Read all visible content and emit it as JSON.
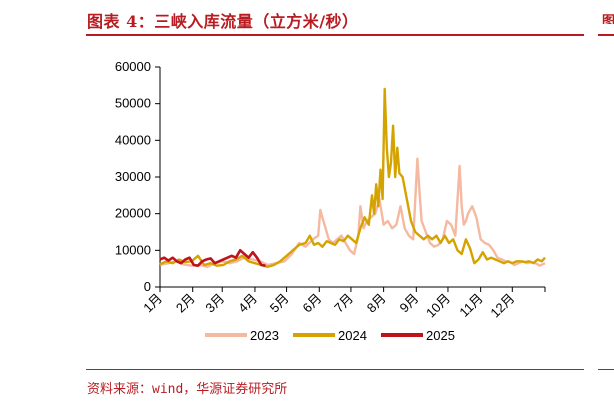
{
  "header": {
    "title": "图表 4：三峡入库流量（立方米/秒）",
    "side_mark": "图"
  },
  "footer": {
    "source": "资料来源：wind，华源证券研究所"
  },
  "chart_data": {
    "type": "line",
    "title": "图表 4：三峡入库流量（立方米/秒）",
    "xlabel": "",
    "ylabel": "",
    "ylim": [
      0,
      60000
    ],
    "yticks": [
      0,
      10000,
      20000,
      30000,
      40000,
      50000,
      60000
    ],
    "ytick_labels": [
      "0",
      "10000",
      "20000",
      "30000",
      "40000",
      "50000",
      "60000"
    ],
    "xlim": [
      0,
      365
    ],
    "xticks": [
      0,
      31,
      59,
      90,
      120,
      151,
      181,
      212,
      243,
      273,
      304,
      334,
      365
    ],
    "xtick_labels": [
      "1月",
      "2月",
      "3月",
      "4月",
      "5月",
      "6月",
      "7月",
      "8月",
      "9月",
      "10月",
      "11月",
      "12月"
    ],
    "grid": false,
    "legend_position": "bottom",
    "series": [
      {
        "name": "2023",
        "color": "#f4b9a0",
        "x": [
          0,
          8,
          15,
          22,
          30,
          38,
          45,
          52,
          59,
          66,
          73,
          80,
          88,
          95,
          102,
          110,
          118,
          125,
          132,
          138,
          145,
          150,
          152,
          156,
          160,
          164,
          168,
          172,
          176,
          180,
          184,
          188,
          190,
          193,
          196,
          200,
          204,
          208,
          212,
          216,
          220,
          224,
          228,
          232,
          236,
          240,
          242,
          244,
          246,
          248,
          252,
          256,
          260,
          264,
          268,
          272,
          276,
          280,
          284,
          286,
          288,
          290,
          292,
          296,
          300,
          304,
          308,
          312,
          316,
          320,
          324,
          328,
          332,
          336,
          340,
          344,
          348,
          352,
          356,
          360,
          365
        ],
        "y": [
          6000,
          6500,
          7000,
          6200,
          5800,
          6000,
          5500,
          6500,
          7000,
          6500,
          7000,
          8000,
          7500,
          7000,
          6000,
          6500,
          7000,
          9000,
          12000,
          11000,
          13000,
          14000,
          21000,
          17000,
          13000,
          12000,
          13000,
          14000,
          12000,
          10000,
          9000,
          14000,
          22000,
          16000,
          18000,
          19000,
          20000,
          24000,
          17000,
          18000,
          16000,
          17000,
          22000,
          16000,
          14000,
          13000,
          24000,
          35000,
          26000,
          18000,
          15000,
          12000,
          11000,
          11500,
          13000,
          18000,
          17000,
          14000,
          33000,
          22000,
          17000,
          18000,
          20000,
          22000,
          19000,
          13000,
          12000,
          11500,
          10000,
          8000,
          7500,
          7000,
          6800,
          6000,
          6500,
          7000,
          6500,
          6800,
          6500,
          5800,
          6500
        ]
      },
      {
        "name": "2024",
        "color": "#d4a300",
        "x": [
          0,
          6,
          12,
          18,
          24,
          30,
          36,
          42,
          48,
          54,
          60,
          66,
          72,
          78,
          84,
          90,
          96,
          102,
          108,
          114,
          120,
          126,
          132,
          138,
          142,
          146,
          150,
          154,
          158,
          162,
          166,
          170,
          174,
          178,
          182,
          186,
          190,
          194,
          198,
          201,
          203,
          205,
          207,
          209,
          211,
          213,
          215,
          217,
          219,
          221,
          223,
          225,
          227,
          230,
          234,
          238,
          242,
          246,
          250,
          254,
          258,
          262,
          266,
          270,
          274,
          278,
          282,
          286,
          290,
          294,
          298,
          302,
          306,
          310,
          314,
          318,
          322,
          326,
          330,
          334,
          338,
          342,
          346,
          350,
          354,
          358,
          362,
          365
        ],
        "y": [
          6200,
          7000,
          6500,
          7500,
          6800,
          7000,
          8500,
          6000,
          6500,
          5800,
          6000,
          7000,
          7500,
          8500,
          7000,
          6500,
          6000,
          5500,
          6000,
          7000,
          8500,
          10000,
          11500,
          12000,
          14000,
          11500,
          12000,
          11000,
          12500,
          12000,
          11500,
          13000,
          12500,
          14000,
          13000,
          12000,
          16000,
          19000,
          17000,
          25000,
          20000,
          28000,
          22000,
          32000,
          24000,
          54000,
          38000,
          30000,
          34000,
          44000,
          30000,
          38000,
          31000,
          30000,
          24000,
          18000,
          15000,
          14000,
          13000,
          14000,
          13000,
          14000,
          12000,
          14000,
          12000,
          13000,
          10000,
          9000,
          13000,
          10500,
          6500,
          7500,
          9500,
          7500,
          8000,
          7500,
          7000,
          6500,
          7000,
          6500,
          7000,
          7000,
          6800,
          7000,
          6500,
          7500,
          7000,
          8000
        ]
      },
      {
        "name": "2025",
        "color": "#c0121c",
        "x": [
          0,
          4,
          8,
          12,
          16,
          20,
          24,
          28,
          32,
          36,
          40,
          44,
          48,
          52,
          56,
          60,
          64,
          68,
          72,
          76,
          80,
          84,
          88,
          92,
          96,
          100
        ],
        "y": [
          7500,
          8000,
          7200,
          8000,
          7000,
          6500,
          7500,
          8000,
          6000,
          5800,
          7000,
          7500,
          7800,
          6500,
          7000,
          7500,
          8000,
          8500,
          8000,
          10000,
          9000,
          8000,
          9500,
          8000,
          6000,
          5800
        ]
      }
    ]
  }
}
